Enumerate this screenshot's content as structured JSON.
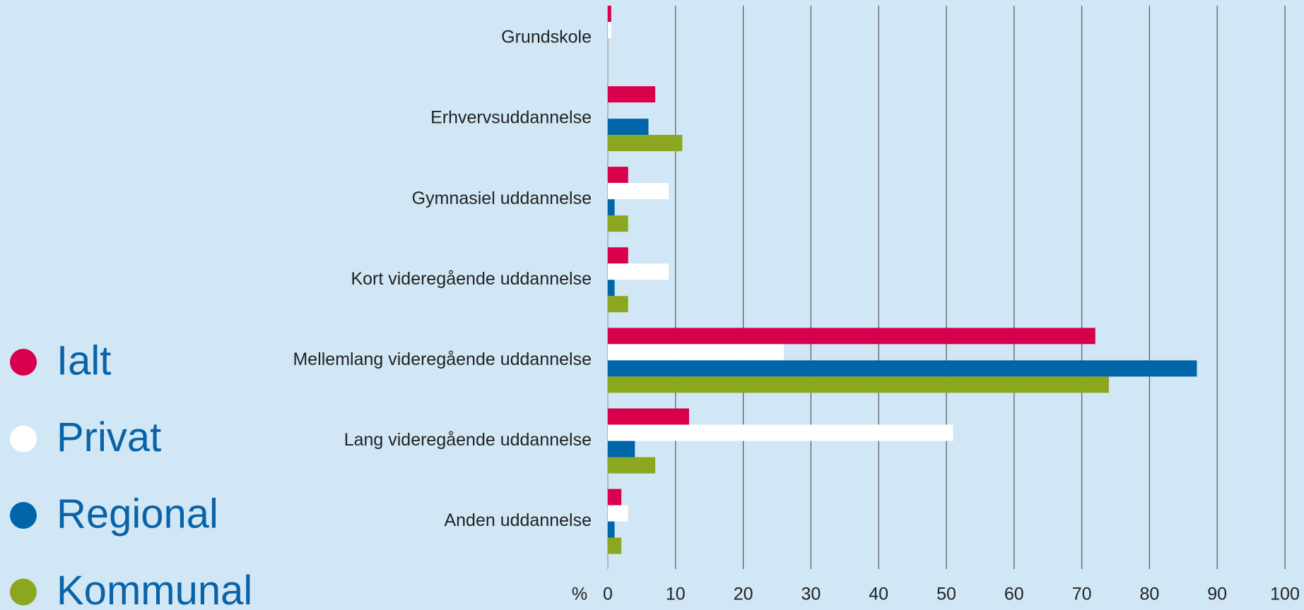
{
  "chart_data": {
    "type": "bar",
    "orientation": "horizontal",
    "xlabel": "%",
    "categories": [
      "Grundskole",
      "Erhvervsuddannelse",
      "Gymnasiel uddannelse",
      "Kort videregående uddannelse",
      "Mellemlang videregående uddannelse",
      "Lang videregående uddannelse",
      "Anden uddannelse"
    ],
    "series": [
      {
        "name": "Ialt",
        "color": "#d8004c",
        "values": [
          0.5,
          7,
          3,
          3,
          72,
          12,
          2
        ]
      },
      {
        "name": "Privat",
        "color": "#ffffff",
        "values": [
          0.5,
          0,
          9,
          9,
          26,
          51,
          3
        ]
      },
      {
        "name": "Regional",
        "color": "#0066a8",
        "values": [
          0,
          6,
          1,
          1,
          87,
          4,
          1
        ]
      },
      {
        "name": "Kommunal",
        "color": "#8ba61f",
        "values": [
          0,
          11,
          3,
          3,
          74,
          7,
          2
        ]
      }
    ],
    "xlim": [
      0,
      100
    ],
    "xticks": [
      0,
      10,
      20,
      30,
      40,
      50,
      60,
      70,
      80,
      90,
      100
    ],
    "grid": true,
    "legend": "left"
  }
}
